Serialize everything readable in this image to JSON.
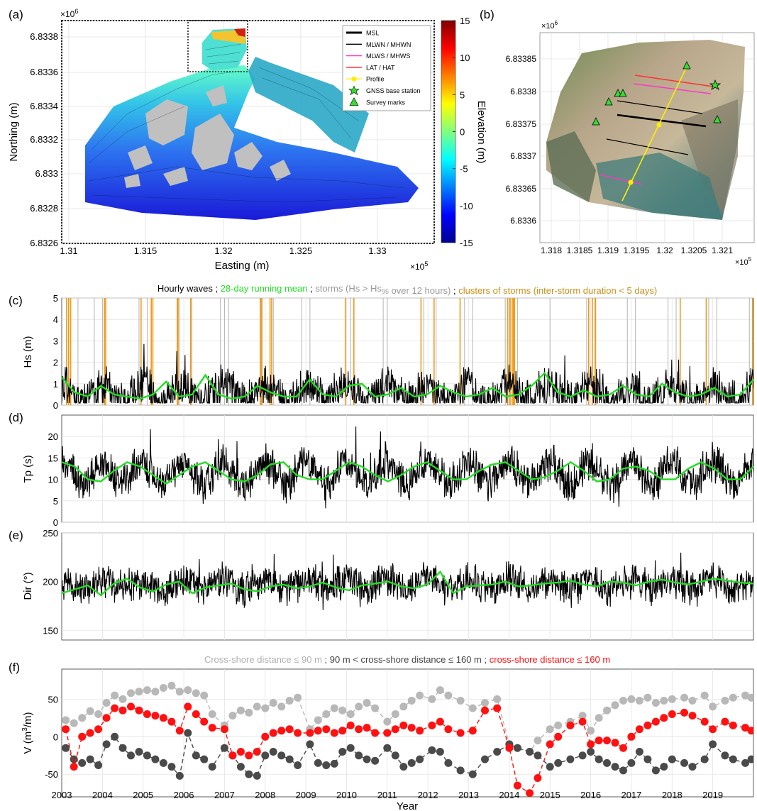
{
  "panels": {
    "a": {
      "tag": "(a)",
      "xlabel": "Easting (m)",
      "ylabel": "Northing (m)",
      "x_exponent": "×10",
      "x_exp_power": "5",
      "y_exponent": "×10",
      "y_exp_power": "6",
      "x_ticks": [
        "1.31",
        "1.315",
        "1.32",
        "1.325",
        "1.33"
      ],
      "y_ticks": [
        "6.8326",
        "6.8328",
        "6.833",
        "6.8332",
        "6.8334",
        "6.8336",
        "6.8338"
      ],
      "colorbar_label": "Elevation (m)",
      "colorbar_ticks": [
        "15",
        "10",
        "5",
        "0",
        "-5",
        "-10",
        "-15"
      ],
      "legend": [
        {
          "label": "MSL",
          "color": "#000000",
          "kind": "line-thick"
        },
        {
          "label": "MLWN / MHWN",
          "color": "#000000",
          "kind": "line"
        },
        {
          "label": "MLWS / MHWS",
          "color": "#ff33cc",
          "kind": "line"
        },
        {
          "label": "LAT / HAT",
          "color": "#ff2222",
          "kind": "line"
        },
        {
          "label": "Profile",
          "color": "#ffee00",
          "kind": "dot-line"
        },
        {
          "label": "GNSS base station",
          "color": "#33dd33",
          "kind": "star"
        },
        {
          "label": "Survey marks",
          "color": "#33dd33",
          "kind": "triangle"
        }
      ]
    },
    "b": {
      "tag": "(b)",
      "x_exponent": "×10",
      "x_exp_power": "5",
      "y_exponent": "×10",
      "y_exp_power": "6",
      "x_ticks": [
        "1.318",
        "1.3185",
        "1.319",
        "1.3195",
        "1.32",
        "1.3205",
        "1.321"
      ],
      "y_ticks": [
        "6.8336",
        "6.83365",
        "6.8337",
        "6.83375",
        "6.8338",
        "6.83385"
      ]
    },
    "c": {
      "tag": "(c)",
      "ylabel": "Hs (m)",
      "title_parts": [
        {
          "text": "Hourly waves ; ",
          "color": "#000000"
        },
        {
          "text": "28-day running mean",
          "color": "#22dd22"
        },
        {
          "text": " ; ",
          "color": "#000000"
        },
        {
          "text": "storms (Hs > Hs",
          "color": "#9a9a9a"
        },
        {
          "text": "95",
          "color": "#9a9a9a",
          "sub": true
        },
        {
          "text": " over 12 hours)",
          "color": "#9a9a9a"
        },
        {
          "text": " ; ",
          "color": "#000000"
        },
        {
          "text": "clusters of storms (inter-storm duration < 5 days)",
          "color": "#c8901a"
        }
      ]
    },
    "d": {
      "tag": "(d)",
      "ylabel": "Tp (s)"
    },
    "e": {
      "tag": "(e)",
      "ylabel": "Dir (°)"
    },
    "f": {
      "tag": "(f)",
      "ylabel": "V (m",
      "ylabel_sup": "3",
      "ylabel_end": "/m)",
      "xlabel": "Year",
      "title_parts": [
        {
          "text": "Cross-shore distance ≤ 90 m",
          "color": "#b0b0b0"
        },
        {
          "text": " ; 90 m < cross-shore distance ≤ 160 m ; ",
          "color": "#444444"
        },
        {
          "text": "cross-shore distance ≤ 160 m",
          "color": "#ff1111"
        }
      ]
    }
  },
  "chart_data": [
    {
      "type": "line",
      "panel": "c",
      "ylabel": "Hs (m)",
      "ylim": [
        0,
        5
      ],
      "yticks": [
        0,
        1,
        2,
        3,
        4,
        5
      ],
      "xlim": [
        2003,
        2020
      ],
      "xticks": [
        2003,
        2004,
        2005,
        2006,
        2007,
        2008,
        2009,
        2010,
        2011,
        2012,
        2013,
        2014,
        2015,
        2016,
        2017,
        2018,
        2019
      ],
      "series": [
        {
          "name": "Hourly waves",
          "color": "#000000",
          "pattern": {
            "base": 0.55,
            "amp": 0.35,
            "noise": 1.6,
            "min": 0.1,
            "max": 5
          }
        },
        {
          "name": "28-day running mean",
          "color": "#22dd22",
          "values": [
            1.3,
            0.6,
            0.4,
            0.9,
            0.5,
            0.4,
            0.3,
            0.5,
            1.1,
            0.4,
            0.5,
            1.4,
            0.5,
            0.3,
            0.4,
            0.9,
            0.6,
            0.4,
            0.4,
            1.2,
            0.5,
            0.4,
            0.9,
            1.0,
            0.4,
            0.5,
            0.8,
            0.4,
            0.5,
            0.9,
            0.6,
            0.4,
            0.5,
            0.8,
            0.4,
            0.5,
            0.9,
            1.5,
            0.6,
            0.4,
            0.7,
            0.4,
            0.5,
            0.9,
            0.5,
            0.4,
            1.0,
            0.6,
            0.4,
            0.5,
            0.8,
            0.4,
            0.5,
            1.2
          ]
        }
      ],
      "storms": [
        2003.4,
        2003.8,
        2004.0,
        2004.9,
        2005.1,
        2005.9,
        2006.2,
        2006.9,
        2007.0,
        2007.1,
        2007.9,
        2008.2,
        2008.9,
        2009.1,
        2010.1,
        2010.9,
        2011.0,
        2011.9,
        2012.2,
        2012.9,
        2013.1,
        2013.9,
        2014.0,
        2014.1,
        2014.2,
        2015.0,
        2015.9,
        2016.1,
        2016.9,
        2017.1,
        2017.9,
        2018.1,
        2018.9,
        2019.1,
        2019.9
      ],
      "clusters": [
        2003.12,
        2003.17,
        2003.22,
        2004.05,
        2004.08,
        2004.95,
        2005.2,
        2005.24,
        2005.84,
        2005.86,
        2006.17,
        2007.88,
        2007.92,
        2008.12,
        2008.16,
        2009.97,
        2010.18,
        2011.83,
        2012.15,
        2012.79,
        2013.96,
        2014.02,
        2014.07,
        2014.1,
        2014.13,
        2015.95,
        2016.04,
        2016.12,
        2018.2,
        2018.84,
        2019.98
      ]
    },
    {
      "type": "line",
      "panel": "d",
      "ylabel": "Tp (s)",
      "ylim": [
        0,
        25
      ],
      "yticks": [
        0,
        5,
        10,
        15,
        20
      ],
      "xlim": [
        2003,
        2020
      ],
      "series": [
        {
          "name": "Hourly waves",
          "color": "#000000",
          "pattern": {
            "base": 11.5,
            "amp": 2.5,
            "noise": 7.5,
            "min": 2,
            "max": 24
          }
        },
        {
          "name": "28-day running mean",
          "color": "#22dd22",
          "values": [
            14,
            13,
            10,
            9.5,
            12,
            14,
            13,
            11,
            9,
            11,
            13,
            14,
            12,
            10,
            9.5,
            11,
            13.5,
            14,
            11,
            10,
            10,
            12,
            14,
            13,
            11,
            9.5,
            11,
            13,
            14,
            12,
            10,
            10,
            12,
            13.5,
            14,
            12,
            10,
            10.5,
            12,
            14,
            12,
            9.5,
            10,
            12.5,
            13,
            12,
            10,
            10,
            12.5,
            14,
            12.5,
            10,
            10,
            13
          ]
        }
      ]
    },
    {
      "type": "line",
      "panel": "e",
      "ylabel": "Dir (°)",
      "ylim": [
        140,
        250
      ],
      "yticks": [
        150,
        200,
        250
      ],
      "xlim": [
        2003,
        2020
      ],
      "series": [
        {
          "name": "Hourly waves",
          "color": "#000000",
          "pattern": {
            "base": 197,
            "amp": 5,
            "noise": 30,
            "min": 140,
            "max": 250
          }
        },
        {
          "name": "28-day running mean",
          "color": "#22dd22",
          "values": [
            188,
            192,
            196,
            186,
            198,
            203,
            194,
            190,
            197,
            200,
            188,
            194,
            196,
            198,
            192,
            190,
            195,
            197,
            193,
            195,
            199,
            194,
            191,
            196,
            198,
            200,
            195,
            193,
            197,
            210,
            188,
            195,
            196,
            197,
            200,
            195,
            196,
            198,
            199,
            201,
            197,
            195,
            200,
            199,
            196,
            200,
            202,
            199,
            197,
            200,
            203,
            201,
            199,
            198
          ]
        }
      ]
    },
    {
      "type": "scatter",
      "panel": "f",
      "ylabel": "V (m3/m)",
      "xlabel": "Year",
      "ylim": [
        -80,
        90
      ],
      "yticks": [
        -50,
        0,
        50
      ],
      "xlim": [
        2003,
        2020
      ],
      "xticks": [
        2003,
        2004,
        2005,
        2006,
        2007,
        2008,
        2009,
        2010,
        2011,
        2012,
        2013,
        2014,
        2015,
        2016,
        2017,
        2018,
        2019
      ],
      "series": [
        {
          "name": "Cross-shore distance ≤ 90 m",
          "color": "#b8b8b8",
          "x": [
            2003.1,
            2003.3,
            2003.5,
            2003.7,
            2003.9,
            2004.1,
            2004.3,
            2004.5,
            2004.7,
            2004.9,
            2005.1,
            2005.3,
            2005.5,
            2005.7,
            2005.9,
            2006.1,
            2006.3,
            2006.5,
            2006.7,
            2007.0,
            2007.2,
            2007.4,
            2007.6,
            2007.8,
            2008.0,
            2008.2,
            2008.4,
            2008.6,
            2008.8,
            2009.1,
            2009.3,
            2009.5,
            2009.7,
            2009.9,
            2010.1,
            2010.3,
            2010.5,
            2010.7,
            2011.0,
            2011.2,
            2011.4,
            2011.6,
            2011.8,
            2012.1,
            2012.3,
            2012.5,
            2012.8,
            2013.1,
            2013.4,
            2013.7,
            2014.0,
            2014.2,
            2014.5,
            2014.7,
            2015.0,
            2015.2,
            2015.5,
            2015.8,
            2016.0,
            2016.2,
            2016.4,
            2016.6,
            2016.8,
            2017.0,
            2017.2,
            2017.4,
            2017.6,
            2017.8,
            2018.0,
            2018.3,
            2018.5,
            2018.8,
            2019.0,
            2019.3,
            2019.5,
            2019.8,
            2019.95
          ],
          "values": [
            22,
            18,
            25,
            34,
            30,
            45,
            55,
            50,
            58,
            60,
            62,
            60,
            65,
            68,
            60,
            62,
            58,
            55,
            30,
            15,
            28,
            35,
            32,
            40,
            38,
            45,
            40,
            48,
            52,
            10,
            22,
            30,
            38,
            35,
            30,
            40,
            45,
            38,
            20,
            30,
            40,
            48,
            55,
            50,
            62,
            55,
            48,
            38,
            45,
            50,
            -10,
            -15,
            -20,
            -5,
            10,
            15,
            20,
            28,
            8,
            25,
            35,
            42,
            48,
            50,
            48,
            52,
            45,
            48,
            50,
            52,
            48,
            55,
            40,
            48,
            52,
            55,
            52
          ]
        },
        {
          "name": "90 m < cross-shore distance ≤ 160 m",
          "color": "#4a4a4a",
          "x": [
            2003.1,
            2003.3,
            2003.5,
            2003.7,
            2003.9,
            2004.1,
            2004.3,
            2004.5,
            2004.7,
            2004.9,
            2005.1,
            2005.3,
            2005.5,
            2005.7,
            2005.9,
            2006.1,
            2006.3,
            2006.5,
            2006.7,
            2007.0,
            2007.2,
            2007.4,
            2007.6,
            2007.8,
            2008.0,
            2008.2,
            2008.4,
            2008.6,
            2008.8,
            2009.1,
            2009.3,
            2009.5,
            2009.7,
            2009.9,
            2010.1,
            2010.3,
            2010.5,
            2010.7,
            2011.0,
            2011.2,
            2011.4,
            2011.6,
            2011.8,
            2012.1,
            2012.3,
            2012.5,
            2012.8,
            2013.1,
            2013.4,
            2013.7,
            2014.0,
            2014.2,
            2014.5,
            2014.7,
            2015.0,
            2015.2,
            2015.5,
            2015.8,
            2016.0,
            2016.2,
            2016.4,
            2016.6,
            2016.8,
            2017.0,
            2017.2,
            2017.4,
            2017.6,
            2017.8,
            2018.0,
            2018.3,
            2018.5,
            2018.8,
            2019.0,
            2019.3,
            2019.5,
            2019.8,
            2019.95
          ],
          "values": [
            -15,
            -30,
            -35,
            -30,
            -38,
            -10,
            0,
            -15,
            -25,
            -20,
            -25,
            -30,
            -35,
            -40,
            -52,
            5,
            -25,
            -30,
            -40,
            -15,
            -25,
            -40,
            -50,
            -52,
            -25,
            -20,
            -25,
            -30,
            -38,
            -10,
            -35,
            -38,
            -36,
            -20,
            -15,
            -25,
            -30,
            -32,
            -15,
            -25,
            -40,
            -35,
            -30,
            -18,
            -20,
            -35,
            -45,
            -50,
            -30,
            -20,
            -10,
            -15,
            -20,
            -25,
            -40,
            -35,
            -30,
            -25,
            -20,
            -30,
            -35,
            -40,
            -45,
            -35,
            -20,
            -30,
            -45,
            -40,
            -30,
            -35,
            -40,
            -30,
            -10,
            -25,
            -30,
            -35,
            -30
          ]
        },
        {
          "name": "cross-shore distance ≤ 160 m",
          "color": "#ff1111",
          "x": [
            2003.1,
            2003.3,
            2003.5,
            2003.7,
            2003.9,
            2004.1,
            2004.3,
            2004.5,
            2004.7,
            2004.9,
            2005.1,
            2005.3,
            2005.5,
            2005.7,
            2005.9,
            2006.1,
            2006.3,
            2006.5,
            2006.7,
            2007.0,
            2007.2,
            2007.4,
            2007.6,
            2007.8,
            2008.0,
            2008.2,
            2008.4,
            2008.6,
            2008.8,
            2009.1,
            2009.3,
            2009.5,
            2009.7,
            2009.9,
            2010.1,
            2010.3,
            2010.5,
            2010.7,
            2011.0,
            2011.2,
            2011.4,
            2011.6,
            2011.8,
            2012.1,
            2012.3,
            2012.5,
            2012.8,
            2013.1,
            2013.4,
            2013.7,
            2014.0,
            2014.2,
            2014.5,
            2014.7,
            2015.0,
            2015.2,
            2015.5,
            2015.8,
            2016.0,
            2016.2,
            2016.4,
            2016.6,
            2016.8,
            2017.0,
            2017.2,
            2017.4,
            2017.6,
            2017.8,
            2018.0,
            2018.3,
            2018.5,
            2018.8,
            2019.0,
            2019.3,
            2019.5,
            2019.8,
            2019.95
          ],
          "values": [
            10,
            -40,
            0,
            5,
            10,
            25,
            38,
            35,
            40,
            35,
            30,
            28,
            25,
            20,
            8,
            40,
            30,
            20,
            12,
            10,
            -25,
            -20,
            -25,
            -20,
            0,
            5,
            8,
            10,
            5,
            5,
            8,
            10,
            5,
            8,
            15,
            10,
            12,
            5,
            5,
            10,
            15,
            12,
            8,
            15,
            20,
            10,
            5,
            8,
            35,
            38,
            -15,
            -65,
            -75,
            -55,
            -10,
            0,
            15,
            20,
            -10,
            -5,
            -5,
            -8,
            -15,
            0,
            10,
            15,
            20,
            25,
            30,
            32,
            28,
            20,
            10,
            20,
            15,
            12,
            8
          ]
        }
      ]
    }
  ]
}
